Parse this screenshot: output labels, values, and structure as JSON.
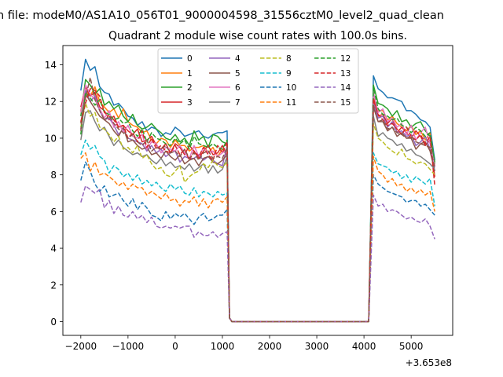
{
  "chart_data": {
    "type": "line",
    "suptitle": "n file: modeM0/AS1A10_056T01_9000004598_31556cztM0_level2_quad_clean",
    "title": "Quadrant 2 module wise count rates with 100.0s bins.",
    "xlabel": "",
    "ylabel": "",
    "x_offset_label": "+3.653e8",
    "xlim": [
      -2380,
      5880
    ],
    "ylim": [
      -0.75,
      15.05
    ],
    "xticks": [
      -2000,
      -1000,
      0,
      1000,
      2000,
      3000,
      4000,
      5000
    ],
    "xtick_labels": [
      "−2000",
      "−1000",
      "0",
      "1000",
      "2000",
      "3000",
      "4000",
      "5000"
    ],
    "yticks": [
      0,
      2,
      4,
      6,
      8,
      10,
      12,
      14
    ],
    "ytick_labels": [
      "0",
      "2",
      "4",
      "6",
      "8",
      "10",
      "12",
      "14"
    ],
    "legend_position": "upper center",
    "x_segments": {
      "start": -2000,
      "step": 100,
      "seg1_end": 1100,
      "gap_start": 1200,
      "gap_end": 4100,
      "seg2_start": 4200,
      "seg2_end": 5500
    },
    "series": [
      {
        "name": "0",
        "color": "#1f77b4",
        "dash": "solid",
        "seg1": [
          12.6,
          14.3,
          13.7,
          13.9,
          12.8,
          12.5,
          12.4,
          11.8,
          11.9,
          11.6,
          11.2,
          11.1,
          10.7,
          10.9,
          10.4,
          10.6,
          10.5,
          10.1,
          10.3,
          10.2,
          10.6,
          10.4,
          10.1,
          10.2,
          10.3,
          10.4,
          10.1,
          10.0,
          10.2,
          10.3,
          10.3,
          10.4
        ],
        "seg2": [
          13.4,
          12.7,
          12.5,
          12.2,
          12.2,
          12.1,
          12.0,
          11.5,
          11.5,
          11.3,
          11.0,
          10.9,
          10.6,
          8.8
        ]
      },
      {
        "name": "1",
        "color": "#ff7f0e",
        "dash": "solid",
        "seg1": [
          11.5,
          12.6,
          12.3,
          12.8,
          12.0,
          11.7,
          11.4,
          11.6,
          11.1,
          11.6,
          10.9,
          10.7,
          10.6,
          10.3,
          10.4,
          9.9,
          9.7,
          10.0,
          9.9,
          9.5,
          9.9,
          9.6,
          9.6,
          9.3,
          9.5,
          9.5,
          9.6,
          9.2,
          9.5,
          9.0,
          9.4,
          9.3
        ],
        "seg2": [
          12.2,
          11.5,
          11.5,
          11.0,
          11.2,
          10.8,
          10.6,
          10.4,
          10.7,
          10.2,
          10.4,
          9.9,
          10.3,
          8.5
        ]
      },
      {
        "name": "2",
        "color": "#2ca02c",
        "dash": "solid",
        "seg1": [
          11.2,
          13.2,
          12.9,
          12.4,
          12.7,
          11.8,
          12.0,
          11.6,
          11.8,
          11.2,
          10.9,
          11.3,
          10.7,
          10.5,
          10.6,
          10.8,
          10.5,
          10.3,
          10.0,
          9.9,
          10.2,
          9.8,
          10.0,
          9.6,
          10.4,
          9.9,
          10.1,
          9.5,
          10.2,
          10.1,
          9.8,
          9.7
        ],
        "seg2": [
          12.9,
          11.9,
          11.8,
          11.6,
          11.2,
          11.5,
          10.9,
          11.0,
          10.6,
          10.8,
          10.9,
          10.4,
          10.1,
          8.6
        ]
      },
      {
        "name": "3",
        "color": "#d62728",
        "dash": "solid",
        "seg1": [
          11.7,
          12.8,
          12.3,
          12.5,
          11.7,
          11.5,
          11.0,
          11.2,
          10.6,
          10.7,
          10.4,
          10.2,
          10.5,
          9.8,
          9.9,
          10.1,
          9.6,
          9.4,
          9.7,
          9.2,
          9.7,
          9.5,
          9.1,
          9.6,
          9.3,
          8.9,
          9.3,
          9.6,
          9.1,
          9.2,
          9.6,
          9.0
        ],
        "seg2": [
          12.2,
          11.2,
          11.3,
          10.8,
          11.1,
          10.3,
          10.6,
          10.3,
          10.0,
          10.4,
          10.1,
          9.6,
          9.9,
          7.9
        ]
      },
      {
        "name": "4",
        "color": "#9467bd",
        "dash": "solid",
        "seg1": [
          10.5,
          12.6,
          12.0,
          12.3,
          11.5,
          11.0,
          11.1,
          10.7,
          10.2,
          10.5,
          10.0,
          9.9,
          9.8,
          9.7,
          9.3,
          9.6,
          9.2,
          9.4,
          9.0,
          9.2,
          9.3,
          8.7,
          9.0,
          8.9,
          8.9,
          9.1,
          8.8,
          9.0,
          8.8,
          8.6,
          8.5,
          9.6
        ],
        "seg2": [
          11.9,
          11.1,
          11.2,
          10.6,
          10.9,
          10.3,
          10.4,
          10.1,
          10.2,
          9.6,
          9.8,
          10.1,
          9.4,
          8.4
        ]
      },
      {
        "name": "5",
        "color": "#8c564b",
        "dash": "solid",
        "seg1": [
          10.8,
          12.4,
          12.0,
          11.6,
          11.2,
          11.0,
          10.8,
          10.4,
          10.1,
          10.6,
          9.8,
          9.9,
          9.6,
          9.4,
          9.5,
          9.1,
          9.2,
          8.9,
          9.3,
          9.0,
          8.8,
          9.1,
          8.6,
          8.8,
          8.9,
          8.5,
          8.9,
          9.0,
          8.7,
          8.6,
          8.8,
          9.1
        ],
        "seg2": [
          11.7,
          10.9,
          10.9,
          10.4,
          10.6,
          10.1,
          10.3,
          10.0,
          10.0,
          9.4,
          9.7,
          9.8,
          9.3,
          8.2
        ]
      },
      {
        "name": "6",
        "color": "#e377c2",
        "dash": "solid",
        "seg1": [
          11.4,
          12.9,
          12.4,
          12.1,
          11.6,
          11.1,
          11.5,
          10.6,
          10.9,
          10.3,
          10.7,
          10.1,
          10.0,
          10.2,
          9.4,
          9.8,
          9.7,
          9.2,
          9.5,
          9.4,
          9.3,
          9.6,
          9.2,
          8.9,
          9.6,
          9.0,
          9.5,
          9.2,
          9.3,
          9.0,
          9.2,
          9.4
        ],
        "seg2": [
          12.5,
          11.4,
          11.6,
          10.9,
          11.1,
          10.6,
          10.8,
          10.2,
          10.7,
          9.9,
          10.3,
          10.6,
          9.7,
          8.5
        ]
      },
      {
        "name": "7",
        "color": "#7f7f7f",
        "dash": "solid",
        "seg1": [
          9.9,
          11.4,
          11.5,
          10.9,
          10.4,
          10.6,
          10.1,
          9.6,
          9.9,
          9.5,
          9.3,
          9.1,
          9.2,
          9.0,
          9.1,
          8.8,
          8.6,
          8.9,
          8.5,
          8.7,
          8.4,
          8.5,
          8.3,
          8.6,
          8.2,
          8.4,
          8.6,
          8.1,
          8.5,
          8.1,
          8.3,
          9.0
        ],
        "seg2": [
          11.2,
          10.1,
          10.3,
          10.0,
          9.9,
          9.6,
          9.7,
          9.3,
          9.4,
          9.1,
          9.0,
          8.8,
          8.6,
          8.3
        ]
      },
      {
        "name": "8",
        "color": "#bcbd22",
        "dash": "dashed",
        "seg1": [
          10.6,
          11.9,
          11.2,
          11.4,
          10.6,
          10.5,
          10.2,
          9.8,
          10.1,
          9.4,
          9.5,
          9.2,
          9.6,
          8.9,
          9.1,
          8.6,
          8.3,
          8.4,
          8.0,
          7.9,
          8.2,
          8.5,
          7.6,
          7.9,
          8.1,
          8.2,
          8.6,
          8.4,
          8.8,
          8.5,
          8.4,
          8.7
        ],
        "seg2": [
          10.8,
          10.0,
          9.8,
          9.5,
          9.3,
          9.1,
          9.4,
          8.9,
          8.8,
          8.6,
          8.7,
          8.6,
          8.3,
          8.0
        ]
      },
      {
        "name": "9",
        "color": "#17becf",
        "dash": "dashed",
        "seg1": [
          9.1,
          9.9,
          9.4,
          9.6,
          9.0,
          8.8,
          8.1,
          8.5,
          8.3,
          7.9,
          8.1,
          7.7,
          8.0,
          7.5,
          7.7,
          7.4,
          7.6,
          7.3,
          7.1,
          7.5,
          7.2,
          7.4,
          7.0,
          6.9,
          7.3,
          6.8,
          7.1,
          7.0,
          6.8,
          7.1,
          6.9,
          7.0
        ],
        "seg2": [
          9.2,
          8.6,
          8.5,
          8.4,
          8.1,
          8.2,
          7.8,
          8.0,
          7.6,
          7.9,
          7.7,
          7.5,
          7.8,
          6.3
        ]
      },
      {
        "name": "10",
        "color": "#1f77b4",
        "dash": "dashed",
        "seg1": [
          7.7,
          8.7,
          8.2,
          7.5,
          7.1,
          7.4,
          6.8,
          6.9,
          7.0,
          6.6,
          6.3,
          6.7,
          6.1,
          6.5,
          6.2,
          5.8,
          5.7,
          5.5,
          6.0,
          5.6,
          5.9,
          5.7,
          5.9,
          5.6,
          5.3,
          5.7,
          5.9,
          5.5,
          5.6,
          5.8,
          5.8,
          6.1
        ],
        "seg2": [
          8.0,
          7.5,
          7.3,
          7.1,
          7.0,
          6.9,
          6.8,
          6.5,
          6.6,
          6.6,
          6.3,
          6.4,
          6.1,
          5.8
        ]
      },
      {
        "name": "11",
        "color": "#ff7f0e",
        "dash": "dashed",
        "seg1": [
          8.9,
          9.2,
          8.2,
          8.7,
          8.0,
          8.1,
          7.9,
          7.7,
          7.4,
          7.6,
          7.2,
          7.5,
          7.3,
          7.3,
          6.9,
          7.1,
          6.9,
          6.7,
          7.0,
          6.6,
          6.7,
          6.3,
          6.6,
          6.5,
          6.8,
          6.3,
          6.7,
          6.2,
          6.6,
          6.7,
          6.5,
          6.8
        ],
        "seg2": [
          9.0,
          8.2,
          8.0,
          7.6,
          7.8,
          7.4,
          7.5,
          7.1,
          7.3,
          7.0,
          7.2,
          6.9,
          7.1,
          6.0
        ]
      },
      {
        "name": "12",
        "color": "#2ca02c",
        "dash": "dashed",
        "seg1": [
          10.2,
          12.5,
          12.2,
          11.8,
          12.1,
          11.4,
          11.3,
          11.0,
          11.1,
          10.8,
          10.9,
          10.4,
          10.1,
          10.5,
          9.8,
          10.3,
          10.0,
          9.9,
          9.7,
          9.6,
          10.0,
          9.7,
          9.9,
          9.4,
          10.1,
          9.7,
          9.6,
          9.5,
          9.7,
          9.5,
          9.4,
          9.9
        ],
        "seg2": [
          12.8,
          11.6,
          11.3,
          11.2,
          11.0,
          11.1,
          10.7,
          10.6,
          10.3,
          10.6,
          10.4,
          10.1,
          10.3,
          8.7
        ]
      },
      {
        "name": "13",
        "color": "#d62728",
        "dash": "dashed",
        "seg1": [
          10.9,
          11.9,
          12.7,
          12.6,
          12.3,
          11.4,
          11.2,
          11.0,
          10.6,
          10.7,
          10.0,
          10.3,
          9.8,
          10.4,
          9.5,
          10.0,
          9.4,
          9.6,
          9.3,
          9.2,
          9.6,
          9.1,
          9.4,
          8.8,
          9.3,
          9.0,
          9.5,
          9.1,
          8.8,
          9.6,
          9.2,
          9.8
        ],
        "seg2": [
          12.1,
          11.3,
          11.0,
          10.7,
          10.8,
          10.5,
          10.2,
          10.6,
          10.1,
          9.9,
          10.2,
          9.7,
          10.1,
          7.4
        ]
      },
      {
        "name": "14",
        "color": "#9467bd",
        "dash": "dashed",
        "seg1": [
          6.5,
          7.4,
          7.2,
          7.0,
          7.2,
          6.2,
          6.6,
          5.9,
          6.3,
          5.8,
          5.7,
          6.0,
          5.6,
          5.8,
          5.4,
          5.7,
          5.2,
          5.1,
          5.2,
          5.1,
          5.2,
          5.1,
          5.2,
          5.2,
          4.6,
          4.9,
          4.7,
          4.7,
          4.9,
          4.6,
          4.8,
          4.9
        ],
        "seg2": [
          6.9,
          6.3,
          6.4,
          6.0,
          6.1,
          6.0,
          5.8,
          5.6,
          5.7,
          5.5,
          5.4,
          5.6,
          5.2,
          4.5
        ]
      },
      {
        "name": "15",
        "color": "#8c564b",
        "dash": "dashed",
        "seg1": [
          10.4,
          12.2,
          13.3,
          12.1,
          11.5,
          11.0,
          11.2,
          10.8,
          10.5,
          10.3,
          10.0,
          10.2,
          9.8,
          9.6,
          9.9,
          9.3,
          9.5,
          9.4,
          9.6,
          9.2,
          9.3,
          9.0,
          9.4,
          8.9,
          9.2,
          8.8,
          9.2,
          9.3,
          8.9,
          9.0,
          8.9,
          9.5
        ],
        "seg2": [
          11.8,
          10.9,
          11.0,
          10.5,
          10.6,
          10.3,
          10.2,
          10.0,
          10.1,
          9.8,
          9.7,
          9.6,
          9.5,
          8.4
        ]
      }
    ]
  }
}
